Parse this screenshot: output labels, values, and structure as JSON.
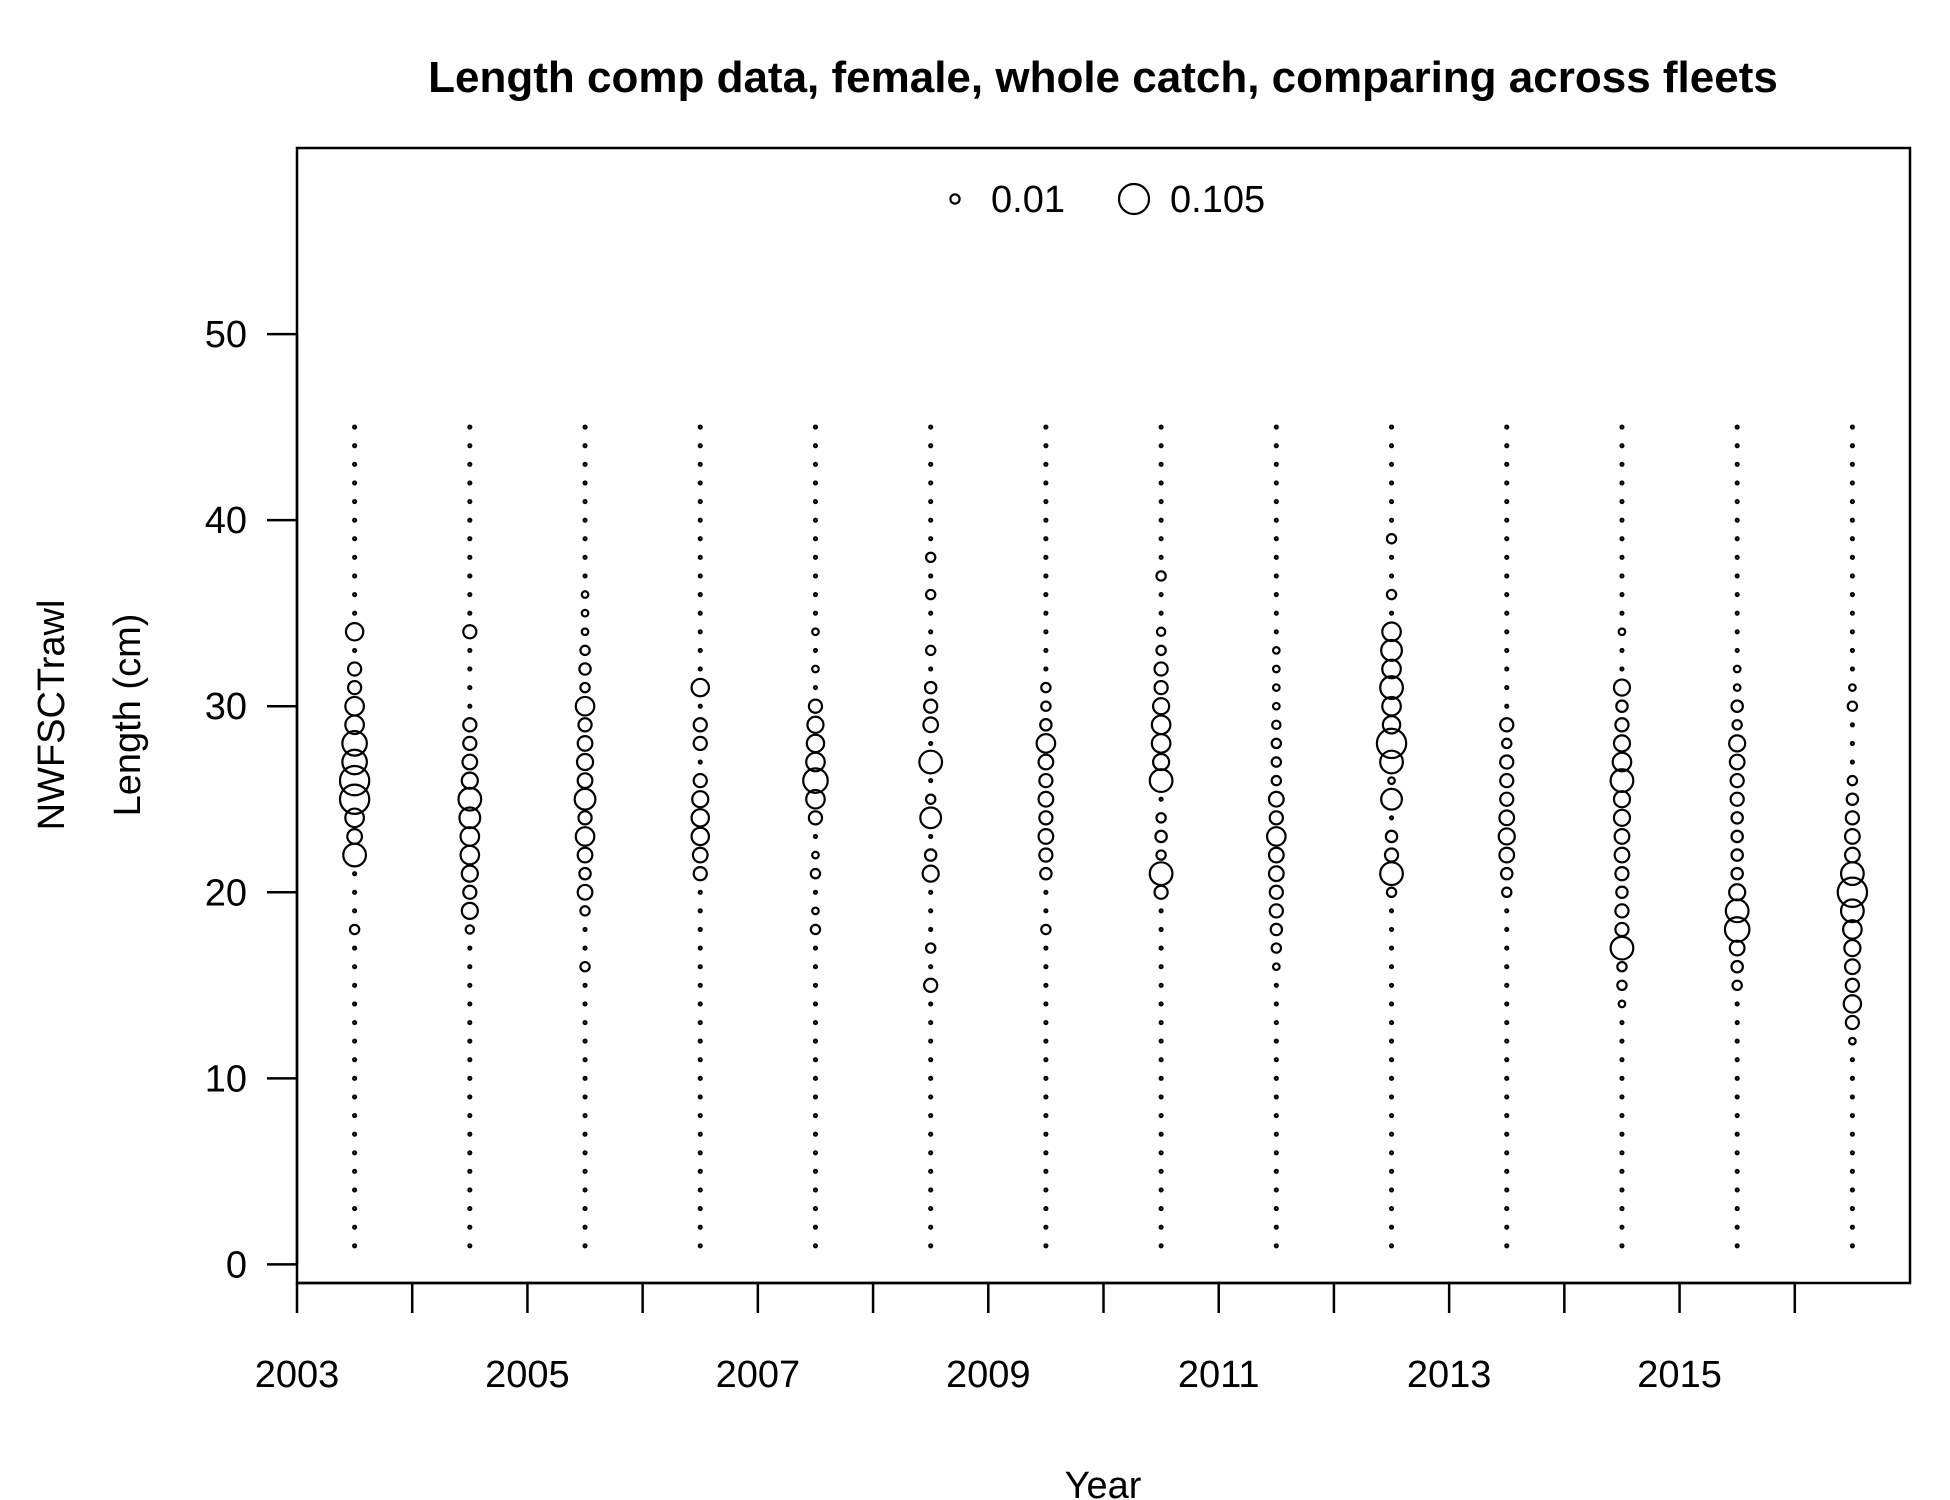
{
  "chart_data": {
    "type": "scatter",
    "title": "Length comp data, female, whole catch, comparing across fleets",
    "xlabel": "Year",
    "ylabel": "Length (cm)",
    "fleet_label": "NWFSCTrawl",
    "xlim": [
      2003,
      2017
    ],
    "ylim": [
      -1,
      60
    ],
    "x_ticks": [
      "2003",
      "2005",
      "2007",
      "2009",
      "2011",
      "2013",
      "2015"
    ],
    "x_minor_ticks": [
      2003,
      2004,
      2005,
      2006,
      2007,
      2008,
      2009,
      2010,
      2011,
      2012,
      2013,
      2014,
      2015,
      2016
    ],
    "y_ticks": [
      "0",
      "10",
      "20",
      "30",
      "40",
      "50"
    ],
    "legend": {
      "position": "top",
      "entries": [
        {
          "label": "0.01",
          "value": 0.01
        },
        {
          "label": "0.105",
          "value": 0.105
        }
      ]
    },
    "bin_range": [
      1,
      45
    ],
    "background_value": 0.001,
    "series": [
      {
        "year": 2003.5,
        "bins": {
          "18": 0.01,
          "22": 0.06,
          "23": 0.025,
          "24": 0.04,
          "25": 0.1,
          "26": 0.1,
          "27": 0.07,
          "28": 0.07,
          "29": 0.04,
          "30": 0.04,
          "31": 0.02,
          "32": 0.02,
          "34": 0.035
        }
      },
      {
        "year": 2004.5,
        "bins": {
          "18": 0.008,
          "19": 0.03,
          "20": 0.02,
          "21": 0.03,
          "22": 0.04,
          "23": 0.04,
          "24": 0.05,
          "25": 0.06,
          "26": 0.03,
          "27": 0.025,
          "28": 0.02,
          "29": 0.02,
          "34": 0.02
        }
      },
      {
        "year": 2005.5,
        "bins": {
          "16": 0.01,
          "19": 0.01,
          "20": 0.025,
          "21": 0.015,
          "22": 0.025,
          "23": 0.04,
          "24": 0.02,
          "25": 0.05,
          "26": 0.025,
          "27": 0.03,
          "28": 0.025,
          "29": 0.02,
          "30": 0.04,
          "31": 0.01,
          "32": 0.015,
          "33": 0.01,
          "34": 0.005,
          "35": 0.005,
          "36": 0.005
        }
      },
      {
        "year": 2006.5,
        "bins": {
          "21": 0.02,
          "22": 0.025,
          "23": 0.035,
          "24": 0.035,
          "25": 0.03,
          "26": 0.02,
          "28": 0.02,
          "29": 0.02,
          "31": 0.035
        }
      },
      {
        "year": 2007.5,
        "bins": {
          "18": 0.01,
          "19": 0.005,
          "21": 0.01,
          "22": 0.005,
          "24": 0.02,
          "25": 0.04,
          "26": 0.07,
          "27": 0.04,
          "28": 0.035,
          "29": 0.03,
          "30": 0.02,
          "32": 0.005,
          "34": 0.005
        }
      },
      {
        "year": 2008.5,
        "bins": {
          "15": 0.02,
          "17": 0.01,
          "21": 0.03,
          "22": 0.015,
          "24": 0.05,
          "25": 0.01,
          "27": 0.06,
          "29": 0.025,
          "30": 0.02,
          "31": 0.015,
          "33": 0.01,
          "36": 0.01,
          "38": 0.01
        }
      },
      {
        "year": 2009.5,
        "bins": {
          "18": 0.01,
          "21": 0.015,
          "22": 0.02,
          "23": 0.025,
          "24": 0.02,
          "25": 0.025,
          "26": 0.02,
          "27": 0.025,
          "28": 0.04,
          "29": 0.015,
          "30": 0.01,
          "31": 0.01
        }
      },
      {
        "year": 2010.5,
        "bins": {
          "20": 0.02,
          "21": 0.06,
          "22": 0.01,
          "23": 0.015,
          "24": 0.01,
          "26": 0.06,
          "27": 0.03,
          "28": 0.04,
          "29": 0.04,
          "30": 0.03,
          "31": 0.02,
          "32": 0.02,
          "33": 0.01,
          "34": 0.008,
          "37": 0.01
        }
      },
      {
        "year": 2011.5,
        "bins": {
          "16": 0.005,
          "17": 0.01,
          "18": 0.015,
          "19": 0.02,
          "20": 0.02,
          "21": 0.025,
          "22": 0.025,
          "23": 0.04,
          "24": 0.02,
          "25": 0.025,
          "26": 0.01,
          "27": 0.01,
          "28": 0.01,
          "29": 0.008,
          "30": 0.005,
          "31": 0.005,
          "32": 0.005,
          "33": 0.005
        }
      },
      {
        "year": 2012.5,
        "bins": {
          "20": 0.01,
          "21": 0.06,
          "22": 0.02,
          "23": 0.015,
          "25": 0.05,
          "26": 0.005,
          "27": 0.06,
          "28": 0.1,
          "29": 0.035,
          "30": 0.04,
          "31": 0.06,
          "32": 0.04,
          "33": 0.05,
          "34": 0.04,
          "36": 0.01,
          "39": 0.01
        }
      },
      {
        "year": 2013.5,
        "bins": {
          "20": 0.01,
          "21": 0.015,
          "22": 0.025,
          "23": 0.03,
          "24": 0.025,
          "25": 0.02,
          "26": 0.02,
          "27": 0.02,
          "28": 0.01,
          "29": 0.02
        }
      },
      {
        "year": 2014.5,
        "bins": {
          "14": 0.005,
          "15": 0.01,
          "16": 0.01,
          "17": 0.06,
          "18": 0.02,
          "19": 0.02,
          "20": 0.015,
          "21": 0.02,
          "22": 0.025,
          "23": 0.025,
          "24": 0.03,
          "25": 0.03,
          "26": 0.06,
          "27": 0.04,
          "28": 0.03,
          "29": 0.02,
          "30": 0.015,
          "31": 0.03,
          "34": 0.005
        }
      },
      {
        "year": 2015.5,
        "bins": {
          "15": 0.01,
          "16": 0.015,
          "17": 0.025,
          "18": 0.07,
          "19": 0.06,
          "20": 0.03,
          "21": 0.015,
          "22": 0.015,
          "23": 0.015,
          "24": 0.015,
          "25": 0.02,
          "26": 0.02,
          "27": 0.025,
          "28": 0.03,
          "29": 0.01,
          "30": 0.015,
          "31": 0.005,
          "32": 0.005
        }
      },
      {
        "year": 2016.5,
        "bins": {
          "12": 0.005,
          "13": 0.02,
          "14": 0.035,
          "15": 0.02,
          "16": 0.025,
          "17": 0.03,
          "18": 0.04,
          "19": 0.06,
          "20": 0.1,
          "21": 0.06,
          "22": 0.025,
          "23": 0.025,
          "24": 0.02,
          "25": 0.015,
          "26": 0.01,
          "30": 0.01,
          "31": 0.005
        }
      }
    ]
  }
}
